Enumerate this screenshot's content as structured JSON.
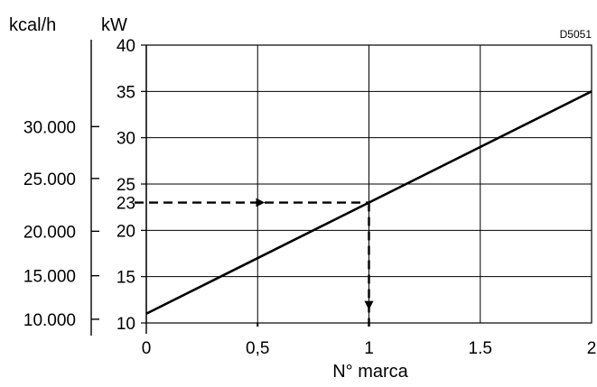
{
  "chart_data": {
    "type": "line",
    "code": "D5051",
    "xlabel": "N° marca",
    "kw_unit": "kW",
    "kcal_unit": "kcal/h",
    "xlim": [
      0,
      2
    ],
    "kw_lim": [
      10,
      40
    ],
    "x_ticks": [
      {
        "value": 0,
        "label": "0"
      },
      {
        "value": 0.5,
        "label": "0,5"
      },
      {
        "value": 1,
        "label": "1"
      },
      {
        "value": 1.5,
        "label": "1.5"
      },
      {
        "value": 2,
        "label": "2"
      }
    ],
    "kw_ticks": [
      {
        "value": 10,
        "label": "10"
      },
      {
        "value": 15,
        "label": "15"
      },
      {
        "value": 20,
        "label": "20"
      },
      {
        "value": 25,
        "label": "25"
      },
      {
        "value": 30,
        "label": "30"
      },
      {
        "value": 35,
        "label": "35"
      },
      {
        "value": 40,
        "label": "40"
      }
    ],
    "kcal_ticks": [
      {
        "kw": 10.4,
        "label": "10.000"
      },
      {
        "kw": 15.1,
        "label": "15.000"
      },
      {
        "kw": 19.9,
        "label": "20.000"
      },
      {
        "kw": 25.6,
        "label": "25.000"
      },
      {
        "kw": 31.2,
        "label": "30.000"
      }
    ],
    "series": [
      {
        "x": [
          0,
          2
        ],
        "y": [
          11,
          35
        ]
      }
    ],
    "example": {
      "x": 1,
      "y": 23,
      "label": "23"
    },
    "grid": true
  }
}
